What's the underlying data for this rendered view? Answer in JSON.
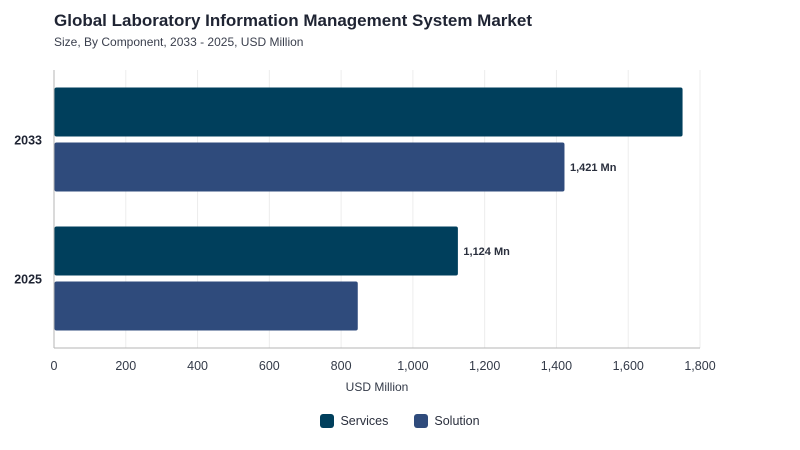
{
  "title": "Global Laboratory Information Management System Market",
  "subtitle": "Size, By Component, 2033 - 2025, USD Million",
  "colors": {
    "Services": "#003f5c",
    "Solution": "#2f4b7c"
  },
  "chart_data": {
    "type": "bar",
    "orientation": "horizontal",
    "categories": [
      "2033",
      "2025"
    ],
    "series": [
      {
        "name": "Services",
        "values": [
          1750,
          1124
        ]
      },
      {
        "name": "Solution",
        "values": [
          1421,
          845
        ]
      }
    ],
    "data_labels": [
      {
        "category": "2033",
        "series": "Solution",
        "text": "1,421 Mn"
      },
      {
        "category": "2025",
        "series": "Services",
        "text": "1,124 Mn"
      }
    ],
    "xlabel": "USD Million",
    "ylabel": "",
    "xlim": [
      0,
      1800
    ],
    "xticks": [
      0,
      200,
      400,
      600,
      800,
      1000,
      1200,
      1400,
      1600,
      1800
    ],
    "xtick_labels": [
      "0",
      "200",
      "400",
      "600",
      "800",
      "1,000",
      "1,200",
      "1,400",
      "1,600",
      "1,800"
    ],
    "grid": true,
    "legend": "bottom-center"
  }
}
